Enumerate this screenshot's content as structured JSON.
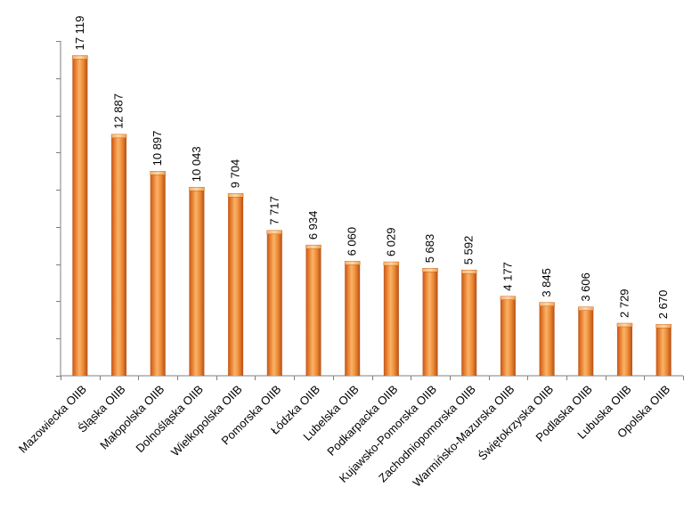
{
  "chart_data": {
    "type": "bar",
    "title": "",
    "xlabel": "",
    "ylabel": "",
    "ylim": [
      0,
      18000
    ],
    "grid": false,
    "legend": "none",
    "categories": [
      "Mazowiecka OIIB",
      "Śląska OIIB",
      "Małopolska OIIB",
      "Dolnośląska OIIB",
      "Wielkopolska OIIB",
      "Pomorska OIIB",
      "Łódzka OIIB",
      "Lubelska OIIB",
      "Podkarpacka OIIB",
      "Kujawsko-Pomorska OIIB",
      "Zachodniopomorska OIIB",
      "Warmińsko-Mazurska OIIB",
      "Świętokrzyska OIIB",
      "Podlaska OIIB",
      "Lubuska OIIB",
      "Opolska OIIB"
    ],
    "values": [
      17119,
      12887,
      10897,
      10043,
      9704,
      7717,
      6934,
      6060,
      6029,
      5683,
      5592,
      4177,
      3845,
      3606,
      2729,
      2670
    ],
    "value_labels": [
      "17 119",
      "12 887",
      "10 897",
      "10 043",
      "9 704",
      "7 717",
      "6 934",
      "6 060",
      "6 029",
      "5 683",
      "5 592",
      "4 177",
      "3 845",
      "3 606",
      "2 729",
      "2 670"
    ],
    "bar_color": "#F0943A"
  }
}
